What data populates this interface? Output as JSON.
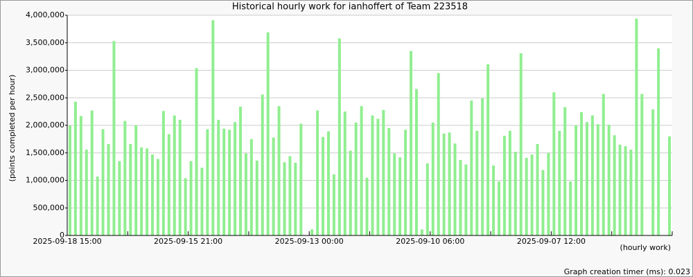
{
  "chart_data": {
    "type": "bar",
    "title": "Historical hourly work for ianhoffert of Team 223518",
    "y_label": "(points completed per hour)",
    "x_label": "(hourly work)",
    "footer": "Graph creation timer (ms): 0.023",
    "color": "#90ee90",
    "grid": true,
    "ylim": [
      0,
      4000000
    ],
    "yticks": [
      0,
      {
        "value": 500000,
        "label": "500,000"
      },
      {
        "value": 1000000,
        "label": "1,000,000"
      },
      {
        "value": 1500000,
        "label": "1,500,000"
      },
      {
        "value": 2000000,
        "label": "2,000,000"
      },
      {
        "value": 2500000,
        "label": "2,500,000"
      },
      {
        "value": 3000000,
        "label": "3,000,000"
      },
      {
        "value": 3500000,
        "label": "3,500,000"
      },
      {
        "value": 4000000,
        "label": "4,000,000"
      }
    ],
    "categories": [
      "2025-09-18 15:00",
      null,
      null,
      null,
      null,
      null,
      null,
      null,
      null,
      null,
      null,
      null,
      null,
      null,
      null,
      null,
      null,
      null,
      null,
      null,
      null,
      null,
      "2025-09-15 21:00",
      null,
      null,
      null,
      null,
      null,
      null,
      null,
      null,
      null,
      null,
      null,
      null,
      null,
      null,
      null,
      null,
      null,
      null,
      null,
      null,
      null,
      "2025-09-13 00:00",
      null,
      null,
      null,
      null,
      null,
      null,
      null,
      null,
      null,
      null,
      null,
      null,
      null,
      null,
      null,
      null,
      null,
      null,
      null,
      null,
      null,
      "2025-09-10 06:00",
      null,
      null,
      null,
      null,
      null,
      null,
      null,
      null,
      null,
      null,
      null,
      null,
      null,
      null,
      null,
      null,
      null,
      null,
      null,
      null,
      null,
      "2025-09-07 12:00",
      null,
      null,
      null,
      null,
      null,
      null,
      null,
      null,
      null,
      null,
      null,
      null,
      null,
      null,
      null,
      null,
      null,
      null,
      null,
      null,
      null
    ],
    "values": [
      2000000,
      2430000,
      2170000,
      1560000,
      2270000,
      1070000,
      1930000,
      1660000,
      3530000,
      1350000,
      2080000,
      1660000,
      2000000,
      1600000,
      1580000,
      1470000,
      1390000,
      2260000,
      1840000,
      2180000,
      2100000,
      1040000,
      1350000,
      3040000,
      1230000,
      1930000,
      3910000,
      2100000,
      1940000,
      1920000,
      2060000,
      2340000,
      1490000,
      1750000,
      1360000,
      2560000,
      3690000,
      1780000,
      2350000,
      1330000,
      1440000,
      1320000,
      2030000,
      0,
      110000,
      2270000,
      1790000,
      1890000,
      1110000,
      3580000,
      2250000,
      1540000,
      2050000,
      2350000,
      1050000,
      2180000,
      2120000,
      2280000,
      1950000,
      1490000,
      1420000,
      1920000,
      3350000,
      2660000,
      110000,
      1310000,
      2050000,
      2950000,
      1850000,
      1870000,
      1670000,
      1370000,
      1290000,
      2450000,
      1900000,
      2490000,
      3110000,
      1270000,
      980000,
      1810000,
      1900000,
      1520000,
      3310000,
      1410000,
      1470000,
      1660000,
      1190000,
      1500000,
      2600000,
      1900000,
      2330000,
      980000,
      2000000,
      2240000,
      2060000,
      2180000,
      2020000,
      2570000,
      2010000,
      1820000,
      1650000,
      1620000,
      1560000,
      3940000,
      2570000,
      0,
      2290000,
      3400000,
      0,
      1800000
    ]
  }
}
